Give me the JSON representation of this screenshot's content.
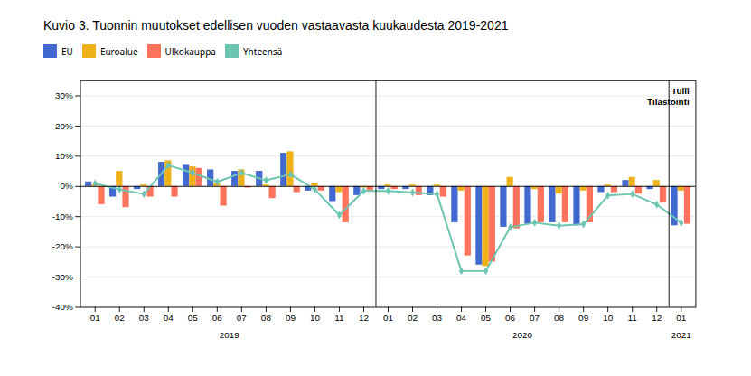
{
  "chart_data": {
    "type": "bar",
    "title": "Kuvio  3. Tuonnin  muutokset edellisen vuoden  vastaavasta kuukaudesta 2019-2021",
    "categories": [
      "01",
      "02",
      "03",
      "04",
      "05",
      "06",
      "07",
      "08",
      "09",
      "10",
      "11",
      "12",
      "01",
      "02",
      "03",
      "04",
      "05",
      "06",
      "07",
      "08",
      "09",
      "10",
      "11",
      "12",
      "01"
    ],
    "series": [
      {
        "name": "EU",
        "values": [
          1.5,
          -3.5,
          -1.0,
          8.0,
          7.0,
          5.5,
          5.0,
          5.0,
          11.0,
          -1.5,
          -5.0,
          -3.0,
          -1.0,
          -1.0,
          -3.0,
          -12.0,
          -26.0,
          -13.5,
          -12.5,
          -12.0,
          -13.0,
          -2.0,
          2.0,
          -1.0,
          -13.0
        ]
      },
      {
        "name": "Euroalue",
        "values": [
          0.5,
          5.0,
          0.5,
          8.5,
          6.5,
          1.0,
          5.5,
          0.5,
          11.5,
          1.0,
          -2.0,
          -0.5,
          0.5,
          0.5,
          0.5,
          -1.5,
          -26.5,
          3.0,
          -1.0,
          -2.5,
          -1.5,
          0.5,
          3.0,
          2.0,
          -1.5
        ]
      },
      {
        "name": "Ulkokauppa",
        "values": [
          -6.0,
          -7.0,
          -3.5,
          -3.5,
          6.0,
          -6.5,
          -0.5,
          -4.0,
          -2.0,
          -1.5,
          -12.0,
          -1.5,
          -1.0,
          -3.0,
          -3.5,
          -23.0,
          -25.0,
          -14.0,
          -12.0,
          -12.0,
          -12.0,
          -2.0,
          -2.5,
          -5.5,
          -12.5
        ]
      },
      {
        "name": "Yhteensä",
        "type": "line",
        "marker": "diamond",
        "values": [
          1.0,
          -1.0,
          -2.5,
          7.0,
          4.5,
          1.5,
          4.5,
          2.0,
          4.0,
          -1.0,
          -9.5,
          -1.5,
          -1.5,
          -2.0,
          -2.5,
          -28.0,
          -28.0,
          -13.5,
          -12.0,
          -13.0,
          -12.5,
          -3.0,
          -2.5,
          -6.0,
          -12.0
        ]
      }
    ],
    "ylim": [
      -40,
      35
    ],
    "yticks": [
      {
        "value": -40,
        "label": "-40%"
      },
      {
        "value": -30,
        "label": "-30%"
      },
      {
        "value": -20,
        "label": "-20%"
      },
      {
        "value": -10,
        "label": "-10%"
      },
      {
        "value": 0,
        "label": "0%"
      },
      {
        "value": 10,
        "label": "10%"
      },
      {
        "value": 20,
        "label": "20%"
      },
      {
        "value": 30,
        "label": "30%"
      }
    ],
    "grid": true,
    "legend": "top",
    "annotations": [
      "2019",
      "2020",
      "2021",
      "Tulli",
      "Tilastointi"
    ]
  }
}
